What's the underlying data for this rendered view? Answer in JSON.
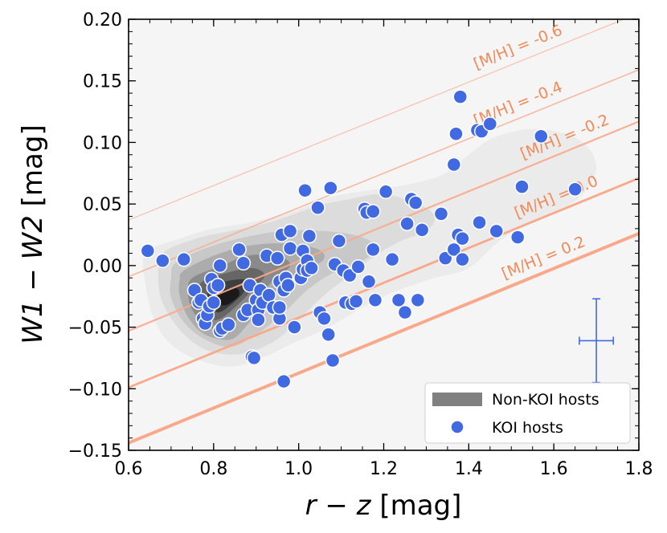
{
  "chart_data": {
    "type": "scatter",
    "title": "",
    "xlabel_italic": "r − z",
    "xlabel_unit": " [mag]",
    "ylabel_italic": "W1 − W2",
    "ylabel_unit": " [mag]",
    "xlim": [
      0.6,
      1.8
    ],
    "ylim": [
      -0.15,
      0.2
    ],
    "xticks": [
      0.6,
      0.8,
      1.0,
      1.2,
      1.4,
      1.6,
      1.8
    ],
    "xtick_labels": [
      "0.6",
      "0.8",
      "1.0",
      "1.2",
      "1.4",
      "1.6",
      "1.8"
    ],
    "yticks": [
      -0.15,
      -0.1,
      -0.05,
      0.0,
      0.05,
      0.1,
      0.15,
      0.2
    ],
    "ytick_labels": [
      "−0.15",
      "−0.10",
      "−0.05",
      "0.00",
      "0.05",
      "0.10",
      "0.15",
      "0.20"
    ],
    "grid": false,
    "legend_position": "lower-right",
    "legend": [
      {
        "label": "Non-KOI hosts",
        "style": "band",
        "color": "#808080"
      },
      {
        "label": "KOI hosts",
        "style": "marker",
        "color": "#4169e1"
      }
    ],
    "metallicity_lines": [
      {
        "label": "[M/H] = -0.6",
        "x0": 0.6,
        "y0": 0.037,
        "x1": 1.8,
        "y1": 0.205,
        "color": "#f9a98a",
        "opacity": 0.7
      },
      {
        "label": "[M/H] = -0.4",
        "x0": 0.6,
        "y0": -0.009,
        "x1": 1.8,
        "y1": 0.159,
        "color": "#f9a98a",
        "opacity": 0.8
      },
      {
        "label": "[M/H] = -0.2",
        "x0": 0.6,
        "y0": -0.053,
        "x1": 1.8,
        "y1": 0.117,
        "color": "#f9a98a",
        "opacity": 0.9
      },
      {
        "label": "[M/H] = 0.0",
        "x0": 0.6,
        "y0": -0.099,
        "x1": 1.8,
        "y1": 0.071,
        "color": "#f9a98a",
        "opacity": 1.0
      },
      {
        "label": "[M/H] = 0.2",
        "x0": 0.6,
        "y0": -0.144,
        "x1": 1.8,
        "y1": 0.026,
        "color": "#f9a98a",
        "opacity": 1.0
      }
    ],
    "error_bar": {
      "x": 1.7,
      "y": -0.061,
      "xerr": 0.04,
      "yerr": 0.034,
      "color": "#4169e1"
    },
    "density_levels": [
      {
        "level": 1,
        "color": "#ebebeb",
        "points": [
          [
            0.64,
            0.01
          ],
          [
            0.72,
            0.022
          ],
          [
            0.8,
            0.03
          ],
          [
            0.9,
            0.036
          ],
          [
            1.0,
            0.046
          ],
          [
            1.08,
            0.056
          ],
          [
            1.18,
            0.062
          ],
          [
            1.26,
            0.066
          ],
          [
            1.34,
            0.074
          ],
          [
            1.4,
            0.09
          ],
          [
            1.46,
            0.104
          ],
          [
            1.56,
            0.111
          ],
          [
            1.66,
            0.102
          ],
          [
            1.7,
            0.08
          ],
          [
            1.66,
            0.055
          ],
          [
            1.58,
            0.04
          ],
          [
            1.48,
            0.022
          ],
          [
            1.4,
            -0.002
          ],
          [
            1.32,
            -0.01
          ],
          [
            1.22,
            -0.022
          ],
          [
            1.14,
            -0.036
          ],
          [
            1.06,
            -0.052
          ],
          [
            0.98,
            -0.064
          ],
          [
            0.92,
            -0.074
          ],
          [
            0.84,
            -0.082
          ],
          [
            0.76,
            -0.076
          ],
          [
            0.7,
            -0.064
          ],
          [
            0.66,
            -0.044
          ],
          [
            0.64,
            -0.016
          ]
        ]
      },
      {
        "level": 2,
        "color": "#dcdcdc",
        "points": [
          [
            0.68,
            0.01
          ],
          [
            0.76,
            0.022
          ],
          [
            0.84,
            0.028
          ],
          [
            0.94,
            0.036
          ],
          [
            1.04,
            0.048
          ],
          [
            1.12,
            0.054
          ],
          [
            1.2,
            0.058
          ],
          [
            1.28,
            0.05
          ],
          [
            1.32,
            0.04
          ],
          [
            1.3,
            0.028
          ],
          [
            1.24,
            0.02
          ],
          [
            1.18,
            0.008
          ],
          [
            1.12,
            -0.008
          ],
          [
            1.06,
            -0.024
          ],
          [
            1.0,
            -0.044
          ],
          [
            0.94,
            -0.062
          ],
          [
            0.86,
            -0.072
          ],
          [
            0.78,
            -0.068
          ],
          [
            0.72,
            -0.052
          ],
          [
            0.68,
            -0.03
          ],
          [
            0.67,
            -0.01
          ]
        ]
      },
      {
        "level": 3,
        "color": "#c8c8c8",
        "points": [
          [
            0.71,
            0.002
          ],
          [
            0.78,
            0.014
          ],
          [
            0.86,
            0.022
          ],
          [
            0.96,
            0.028
          ],
          [
            1.06,
            0.028
          ],
          [
            1.14,
            0.024
          ],
          [
            1.18,
            0.016
          ],
          [
            1.16,
            0.006
          ],
          [
            1.08,
            -0.006
          ],
          [
            1.02,
            -0.02
          ],
          [
            0.96,
            -0.04
          ],
          [
            0.9,
            -0.056
          ],
          [
            0.84,
            -0.066
          ],
          [
            0.78,
            -0.06
          ],
          [
            0.73,
            -0.046
          ],
          [
            0.7,
            -0.026
          ],
          [
            0.7,
            -0.01
          ]
        ]
      },
      {
        "level": 4,
        "color": "#acacac",
        "points": [
          [
            0.73,
            -0.004
          ],
          [
            0.8,
            0.008
          ],
          [
            0.88,
            0.016
          ],
          [
            0.96,
            0.018
          ],
          [
            1.04,
            0.014
          ],
          [
            1.06,
            0.006
          ],
          [
            1.02,
            -0.004
          ],
          [
            0.96,
            -0.016
          ],
          [
            0.92,
            -0.032
          ],
          [
            0.88,
            -0.048
          ],
          [
            0.84,
            -0.06
          ],
          [
            0.78,
            -0.056
          ],
          [
            0.74,
            -0.042
          ],
          [
            0.72,
            -0.024
          ],
          [
            0.72,
            -0.012
          ]
        ]
      },
      {
        "level": 5,
        "color": "#8a8a8a",
        "points": [
          [
            0.75,
            -0.01
          ],
          [
            0.82,
            0.0
          ],
          [
            0.88,
            0.008
          ],
          [
            0.95,
            0.008
          ],
          [
            0.98,
            0.0
          ],
          [
            0.94,
            -0.012
          ],
          [
            0.9,
            -0.028
          ],
          [
            0.86,
            -0.042
          ],
          [
            0.82,
            -0.052
          ],
          [
            0.78,
            -0.048
          ],
          [
            0.75,
            -0.036
          ],
          [
            0.74,
            -0.022
          ]
        ]
      },
      {
        "level": 6,
        "color": "#666666",
        "points": [
          [
            0.77,
            -0.014
          ],
          [
            0.83,
            -0.006
          ],
          [
            0.89,
            -0.002
          ],
          [
            0.92,
            -0.008
          ],
          [
            0.89,
            -0.02
          ],
          [
            0.85,
            -0.034
          ],
          [
            0.81,
            -0.044
          ],
          [
            0.78,
            -0.04
          ],
          [
            0.76,
            -0.03
          ]
        ]
      },
      {
        "level": 7,
        "color": "#3e3e3e",
        "points": [
          [
            0.79,
            -0.018
          ],
          [
            0.84,
            -0.012
          ],
          [
            0.88,
            -0.012
          ],
          [
            0.87,
            -0.022
          ],
          [
            0.84,
            -0.032
          ],
          [
            0.81,
            -0.038
          ],
          [
            0.79,
            -0.03
          ]
        ]
      },
      {
        "level": 8,
        "color": "#1a1a1a",
        "points": [
          [
            0.81,
            -0.022
          ],
          [
            0.85,
            -0.018
          ],
          [
            0.86,
            -0.024
          ],
          [
            0.83,
            -0.032
          ],
          [
            0.81,
            -0.03
          ]
        ]
      }
    ],
    "koi_points": [
      {
        "x": 0.645,
        "y": 0.012
      },
      {
        "x": 0.68,
        "y": 0.004
      },
      {
        "x": 0.73,
        "y": 0.005
      },
      {
        "x": 0.755,
        "y": -0.02
      },
      {
        "x": 0.765,
        "y": -0.03
      },
      {
        "x": 0.77,
        "y": -0.028
      },
      {
        "x": 0.775,
        "y": -0.043
      },
      {
        "x": 0.78,
        "y": -0.047
      },
      {
        "x": 0.785,
        "y": -0.04
      },
      {
        "x": 0.79,
        "y": -0.033
      },
      {
        "x": 0.795,
        "y": -0.011
      },
      {
        "x": 0.8,
        "y": -0.018
      },
      {
        "x": 0.8,
        "y": -0.03
      },
      {
        "x": 0.81,
        "y": -0.016
      },
      {
        "x": 0.815,
        "y": 0.0
      },
      {
        "x": 0.815,
        "y": -0.053
      },
      {
        "x": 0.82,
        "y": -0.051
      },
      {
        "x": 0.835,
        "y": -0.048
      },
      {
        "x": 0.86,
        "y": 0.013
      },
      {
        "x": 0.87,
        "y": 0.002
      },
      {
        "x": 0.87,
        "y": -0.04
      },
      {
        "x": 0.88,
        "y": -0.036
      },
      {
        "x": 0.885,
        "y": -0.016
      },
      {
        "x": 0.89,
        "y": -0.074
      },
      {
        "x": 0.895,
        "y": -0.075
      },
      {
        "x": 0.9,
        "y": -0.028
      },
      {
        "x": 0.905,
        "y": -0.036
      },
      {
        "x": 0.905,
        "y": -0.044
      },
      {
        "x": 0.91,
        "y": -0.02
      },
      {
        "x": 0.915,
        "y": -0.03
      },
      {
        "x": 0.925,
        "y": 0.008
      },
      {
        "x": 0.93,
        "y": -0.024
      },
      {
        "x": 0.94,
        "y": -0.034
      },
      {
        "x": 0.95,
        "y": 0.006
      },
      {
        "x": 0.955,
        "y": -0.013
      },
      {
        "x": 0.955,
        "y": -0.043
      },
      {
        "x": 0.955,
        "y": -0.034
      },
      {
        "x": 0.96,
        "y": 0.025
      },
      {
        "x": 0.965,
        "y": -0.02
      },
      {
        "x": 0.965,
        "y": -0.094
      },
      {
        "x": 0.97,
        "y": -0.01
      },
      {
        "x": 0.975,
        "y": -0.016
      },
      {
        "x": 0.98,
        "y": 0.014
      },
      {
        "x": 0.98,
        "y": 0.028
      },
      {
        "x": 0.99,
        "y": -0.05
      },
      {
        "x": 1.005,
        "y": -0.01
      },
      {
        "x": 1.01,
        "y": 0.012
      },
      {
        "x": 1.01,
        "y": -0.003
      },
      {
        "x": 1.015,
        "y": 0.061
      },
      {
        "x": 1.02,
        "y": 0.004
      },
      {
        "x": 1.02,
        "y": -0.004
      },
      {
        "x": 1.025,
        "y": 0.024
      },
      {
        "x": 1.03,
        "y": -0.002
      },
      {
        "x": 1.045,
        "y": 0.047
      },
      {
        "x": 1.05,
        "y": -0.038
      },
      {
        "x": 1.06,
        "y": -0.043
      },
      {
        "x": 1.07,
        "y": -0.056
      },
      {
        "x": 1.075,
        "y": 0.063
      },
      {
        "x": 1.08,
        "y": -0.077
      },
      {
        "x": 1.085,
        "y": 0.001
      },
      {
        "x": 1.095,
        "y": 0.02
      },
      {
        "x": 1.105,
        "y": -0.004
      },
      {
        "x": 1.11,
        "y": -0.03
      },
      {
        "x": 1.12,
        "y": -0.008
      },
      {
        "x": 1.125,
        "y": -0.031
      },
      {
        "x": 1.135,
        "y": -0.029
      },
      {
        "x": 1.14,
        "y": -0.001
      },
      {
        "x": 1.155,
        "y": 0.046
      },
      {
        "x": 1.16,
        "y": 0.043
      },
      {
        "x": 1.165,
        "y": -0.013
      },
      {
        "x": 1.175,
        "y": 0.044
      },
      {
        "x": 1.175,
        "y": 0.013
      },
      {
        "x": 1.18,
        "y": -0.028
      },
      {
        "x": 1.205,
        "y": 0.06
      },
      {
        "x": 1.22,
        "y": 0.005
      },
      {
        "x": 1.235,
        "y": -0.028
      },
      {
        "x": 1.25,
        "y": -0.038
      },
      {
        "x": 1.255,
        "y": 0.034
      },
      {
        "x": 1.265,
        "y": 0.054
      },
      {
        "x": 1.275,
        "y": 0.051
      },
      {
        "x": 1.28,
        "y": -0.028
      },
      {
        "x": 1.29,
        "y": 0.029
      },
      {
        "x": 1.335,
        "y": 0.042
      },
      {
        "x": 1.345,
        "y": 0.006
      },
      {
        "x": 1.365,
        "y": 0.082
      },
      {
        "x": 1.365,
        "y": 0.013
      },
      {
        "x": 1.37,
        "y": 0.107
      },
      {
        "x": 1.375,
        "y": 0.025
      },
      {
        "x": 1.38,
        "y": 0.137
      },
      {
        "x": 1.385,
        "y": 0.022
      },
      {
        "x": 1.385,
        "y": 0.005
      },
      {
        "x": 1.42,
        "y": 0.11
      },
      {
        "x": 1.425,
        "y": 0.035
      },
      {
        "x": 1.43,
        "y": 0.109
      },
      {
        "x": 1.45,
        "y": 0.115
      },
      {
        "x": 1.465,
        "y": 0.028
      },
      {
        "x": 1.515,
        "y": 0.023
      },
      {
        "x": 1.525,
        "y": 0.064
      },
      {
        "x": 1.57,
        "y": 0.105
      },
      {
        "x": 1.65,
        "y": 0.062
      }
    ]
  }
}
